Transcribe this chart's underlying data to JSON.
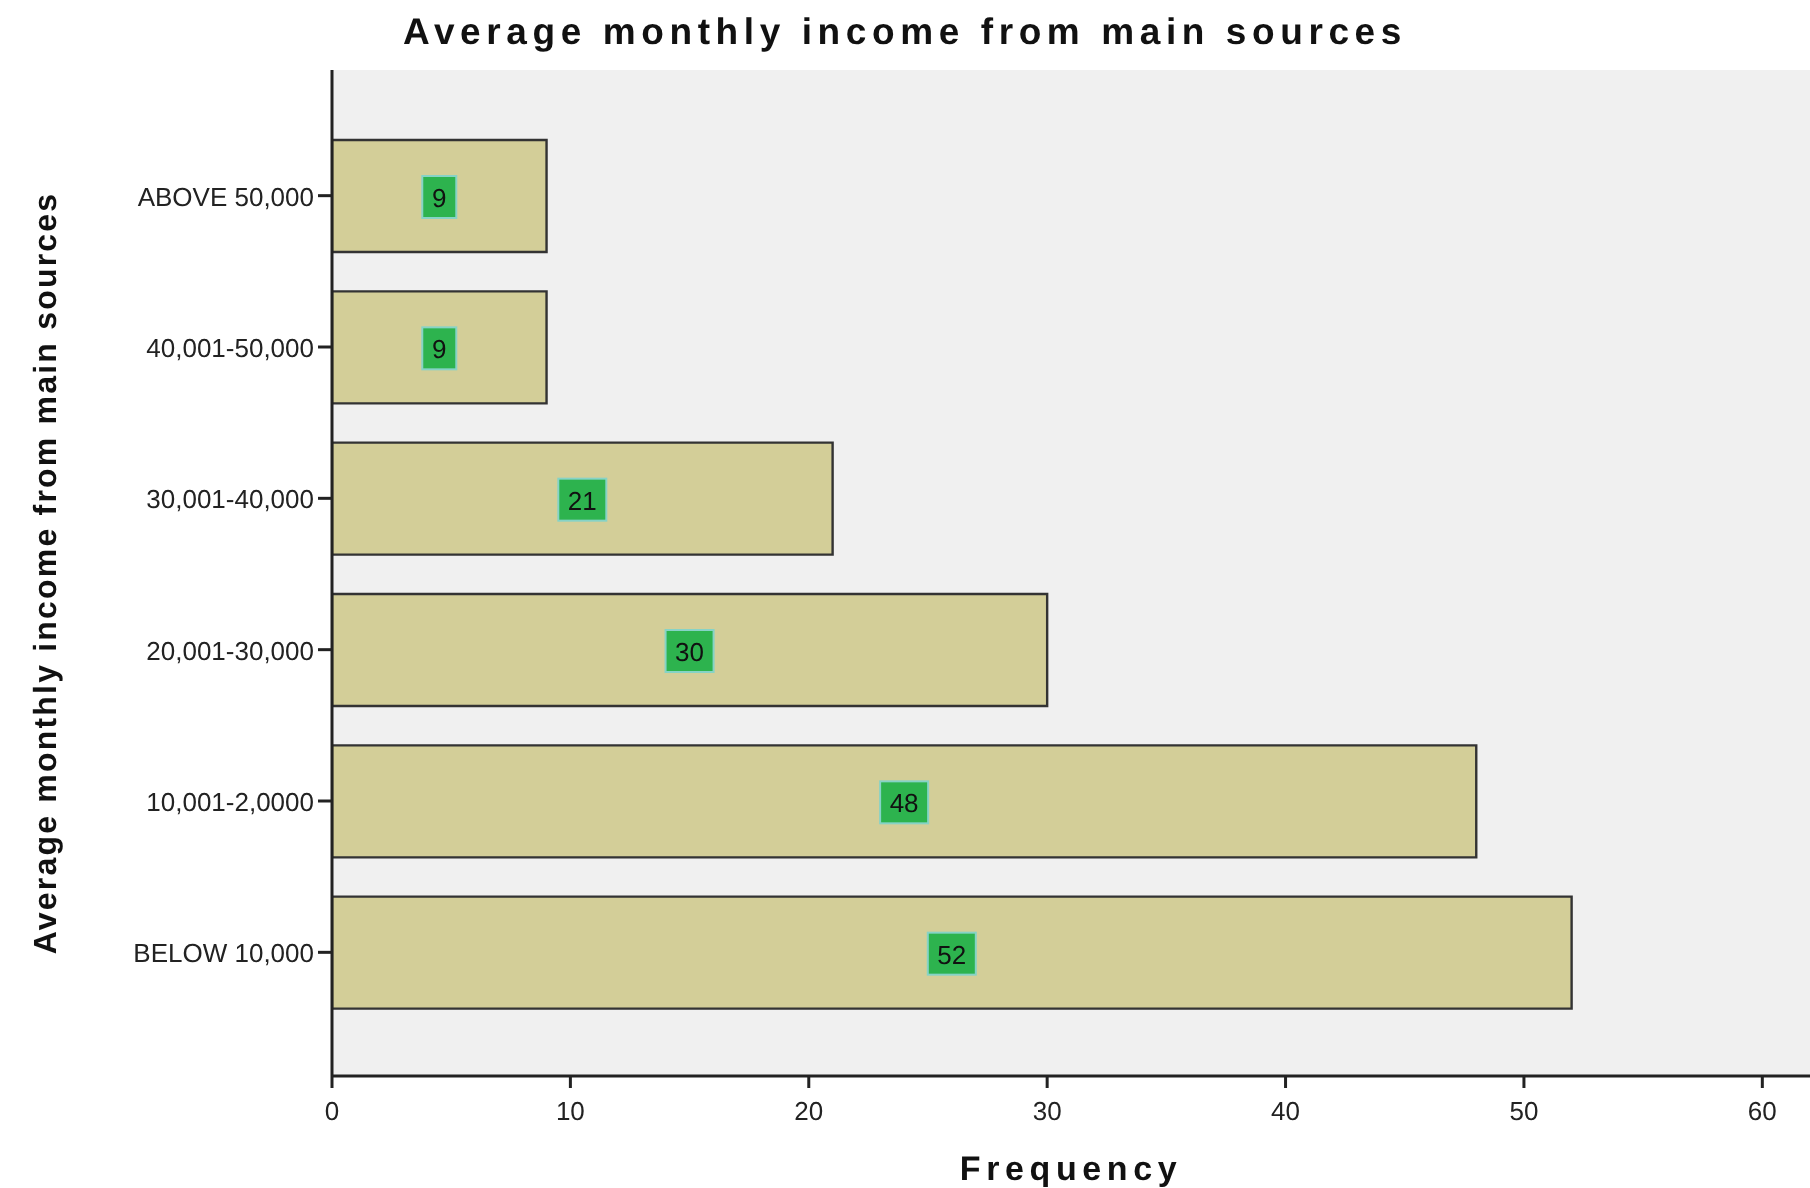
{
  "chart_data": {
    "type": "bar",
    "orientation": "horizontal",
    "title": "Average monthly income from main sources",
    "xlabel": "Frequency",
    "ylabel": "Average monthly income from main sources",
    "categories": [
      "ABOVE 50,000",
      "40,001-50,000",
      "30,001-40,000",
      "20,001-30,000",
      "10,001-2,0000",
      "BELOW 10,000"
    ],
    "values": [
      9,
      9,
      21,
      30,
      48,
      52
    ],
    "color": "#d3ce98",
    "data_labels": true,
    "xlim": [
      0,
      62
    ],
    "xticks": [
      0,
      10,
      20,
      30,
      40,
      50,
      60
    ]
  }
}
